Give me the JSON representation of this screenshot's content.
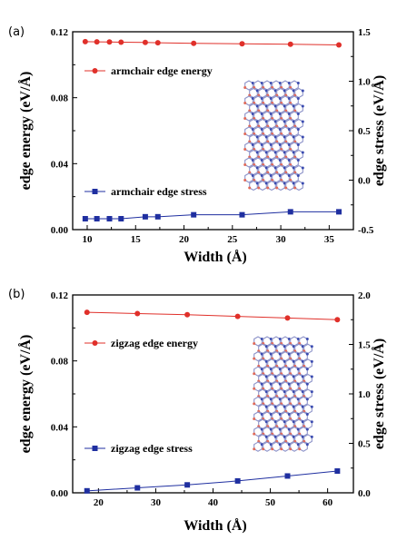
{
  "chart_data": [
    {
      "type": "line",
      "panel_label": "(a)",
      "xlabel": "Width (Å)",
      "ylabel": "edge energy (eV/Å)",
      "y2label": "edge stress (eV/Å)",
      "xlim": [
        8.5,
        37.5
      ],
      "ylim": [
        0.0,
        0.12
      ],
      "y2lim": [
        -0.5,
        1.5
      ],
      "xticks": [
        10,
        15,
        20,
        25,
        30,
        35
      ],
      "yticks": [
        0.0,
        0.04,
        0.08,
        0.12
      ],
      "ytick_labels": [
        "0.00",
        "0.04",
        "0.08",
        "0.12"
      ],
      "y2ticks": [
        -0.5,
        0.0,
        0.5,
        1.0,
        1.5
      ],
      "y2tick_labels": [
        "-0.5",
        "0.0",
        "0.5",
        "1.0",
        "1.5"
      ],
      "series": [
        {
          "name": "armchair edge energy",
          "axis": "left",
          "marker": "circle",
          "color": "#e0302a",
          "x": [
            9.8,
            11.0,
            12.3,
            13.5,
            16.0,
            17.3,
            21.0,
            26.0,
            31.0,
            36.0
          ],
          "y": [
            0.114,
            0.1139,
            0.1138,
            0.1137,
            0.1135,
            0.1133,
            0.113,
            0.1127,
            0.1124,
            0.112
          ]
        },
        {
          "name": "armchair edge stress",
          "axis": "right",
          "marker": "square",
          "color": "#1f2fa0",
          "x": [
            9.8,
            11.0,
            12.3,
            13.5,
            16.0,
            17.3,
            21.0,
            26.0,
            31.0,
            36.0
          ],
          "y": [
            -0.39,
            -0.39,
            -0.39,
            -0.39,
            -0.37,
            -0.37,
            -0.35,
            -0.35,
            -0.32,
            -0.32
          ]
        }
      ],
      "legend_placement": "left",
      "inset": "armchair graphene nanoribbon structure",
      "grid": false
    },
    {
      "type": "line",
      "panel_label": "(b)",
      "xlabel": "Width (Å)",
      "ylabel": "edge energy (eV/Å)",
      "y2label": "edge stress (eV/Å)",
      "xlim": [
        15.5,
        64.5
      ],
      "ylim": [
        0.0,
        0.12
      ],
      "y2lim": [
        0.0,
        2.0
      ],
      "xticks": [
        20,
        30,
        40,
        50,
        60
      ],
      "yticks": [
        0.0,
        0.04,
        0.08,
        0.12
      ],
      "ytick_labels": [
        "0.00",
        "0.04",
        "0.08",
        "0.12"
      ],
      "y2ticks": [
        0.0,
        0.5,
        1.0,
        1.5,
        2.0
      ],
      "y2tick_labels": [
        "0.0",
        "0.5",
        "1.0",
        "1.5",
        "2.0"
      ],
      "series": [
        {
          "name": "zigzag edge energy",
          "axis": "left",
          "marker": "circle",
          "color": "#e0302a",
          "x": [
            18.0,
            26.8,
            35.5,
            44.3,
            53.0,
            61.7
          ],
          "y": [
            0.1095,
            0.1087,
            0.108,
            0.107,
            0.106,
            0.105
          ]
        },
        {
          "name": "zigzag edge stress",
          "axis": "right",
          "marker": "square",
          "color": "#1f2fa0",
          "x": [
            18.0,
            26.8,
            35.5,
            44.3,
            53.0,
            61.7
          ],
          "y": [
            0.02,
            0.05,
            0.08,
            0.12,
            0.17,
            0.22
          ]
        }
      ],
      "legend_placement": "left",
      "inset": "zigzag graphene nanoribbon structure",
      "grid": false
    }
  ]
}
